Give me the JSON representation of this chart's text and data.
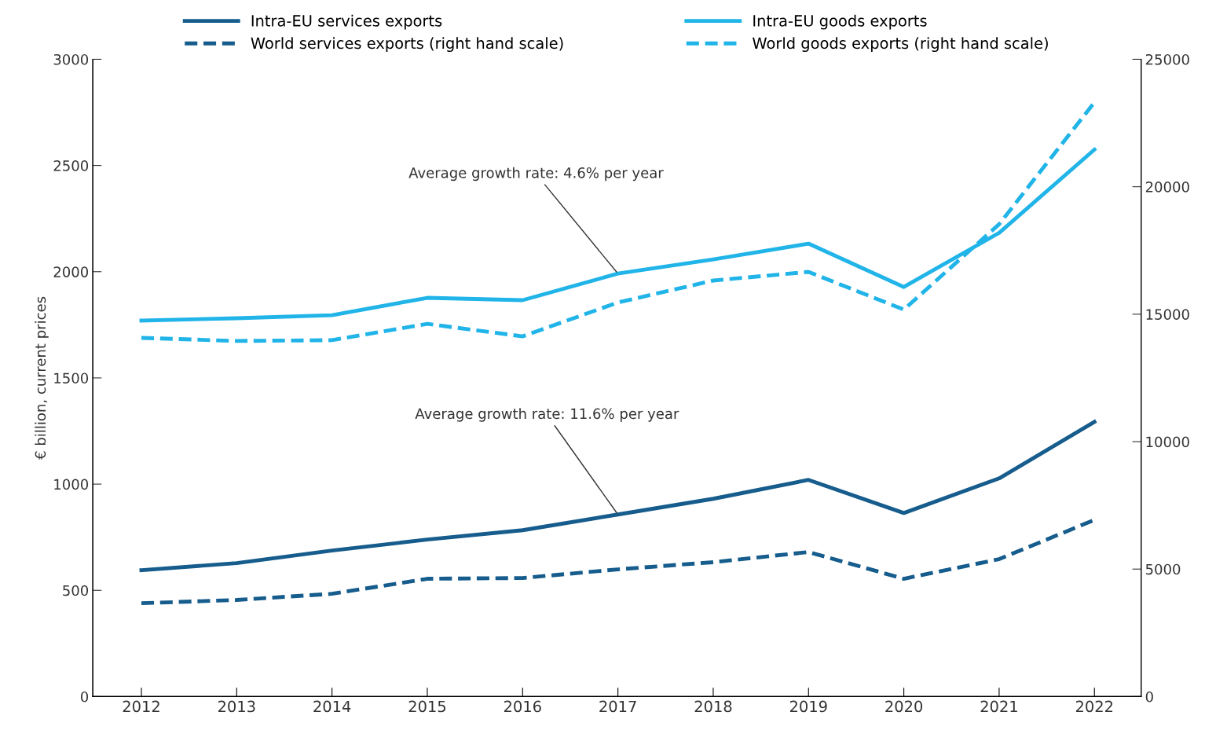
{
  "chart_data": {
    "type": "line",
    "ylabel": "€ billion, current prices",
    "categories": [
      "2012",
      "2013",
      "2014",
      "2015",
      "2016",
      "2017",
      "2018",
      "2019",
      "2020",
      "2021",
      "2022"
    ],
    "ylim": [
      0,
      3000
    ],
    "yticks": [
      0,
      500,
      1000,
      1500,
      2000,
      2500,
      3000
    ],
    "y2lim": [
      0,
      25000
    ],
    "y2ticks": [
      0,
      5000,
      10000,
      15000,
      20000,
      25000
    ],
    "grid": false,
    "legend": "top",
    "series": [
      {
        "name": "Intra-EU services exports",
        "color": "#165c8c",
        "line_style": "solid",
        "values": [
          595,
          628,
          687,
          739,
          783,
          857,
          931,
          1020,
          864,
          1027,
          1293
        ]
      },
      {
        "name": "World services exports (right hand scale)",
        "color": "#165c8c",
        "line_style": "dashed",
        "axis": "y2",
        "values": [
          3660,
          3790,
          4030,
          4620,
          4650,
          4990,
          5270,
          5670,
          4620,
          5390,
          6930
        ]
      },
      {
        "name": "Intra-EU goods exports",
        "color": "#20b4e8",
        "line_style": "solid",
        "values": [
          1770,
          1781,
          1795,
          1877,
          1866,
          1991,
          2058,
          2132,
          1928,
          2183,
          2575
        ]
      },
      {
        "name": "World goods exports (right hand scale)",
        "color": "#20b4e8",
        "line_style": "dashed",
        "axis": "y2",
        "values": [
          14070,
          13950,
          13980,
          14620,
          14130,
          15460,
          16320,
          16660,
          15180,
          18530,
          23310
        ]
      }
    ],
    "annotations": [
      {
        "text": "Average growth rate: 4.6% per year",
        "x": "2017",
        "y": 1991
      },
      {
        "text": "Average growth rate: 11.6% per year",
        "x": "2017",
        "y": 857
      }
    ]
  }
}
